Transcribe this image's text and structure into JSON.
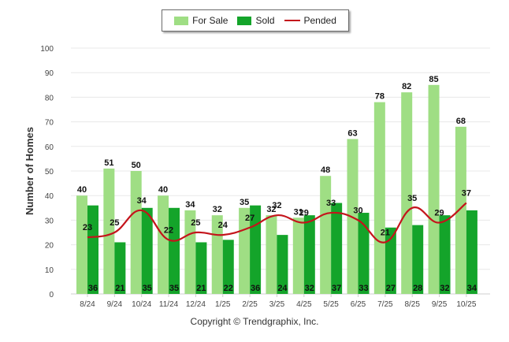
{
  "chart_data": {
    "type": "bar",
    "categories": [
      "8/24",
      "9/24",
      "10/24",
      "11/24",
      "12/24",
      "1/25",
      "2/25",
      "3/25",
      "4/25",
      "5/25",
      "6/25",
      "7/25",
      "8/25",
      "9/25",
      "10/25"
    ],
    "series": [
      {
        "name": "For Sale",
        "type": "bar",
        "color": "#9fde84",
        "values": [
          40,
          51,
          50,
          40,
          34,
          32,
          35,
          32,
          31,
          48,
          63,
          78,
          82,
          85,
          68
        ]
      },
      {
        "name": "Sold",
        "type": "bar",
        "color": "#14a42a",
        "values": [
          36,
          21,
          35,
          35,
          21,
          22,
          36,
          24,
          32,
          37,
          33,
          27,
          28,
          32,
          34
        ]
      },
      {
        "name": "Pended",
        "type": "line",
        "color": "#c4141b",
        "values": [
          23,
          25,
          34,
          22,
          25,
          24,
          27,
          32,
          29,
          33,
          30,
          21,
          35,
          29,
          37
        ]
      }
    ],
    "ylabel": "Number of Homes",
    "ylim": [
      0,
      100
    ],
    "yticks": [
      0,
      10,
      20,
      30,
      40,
      50,
      60,
      70,
      80,
      90,
      100
    ],
    "grid": true,
    "legend_position": "top-center"
  },
  "footer": {
    "copyright": "Copyright © Trendgraphix, Inc."
  }
}
